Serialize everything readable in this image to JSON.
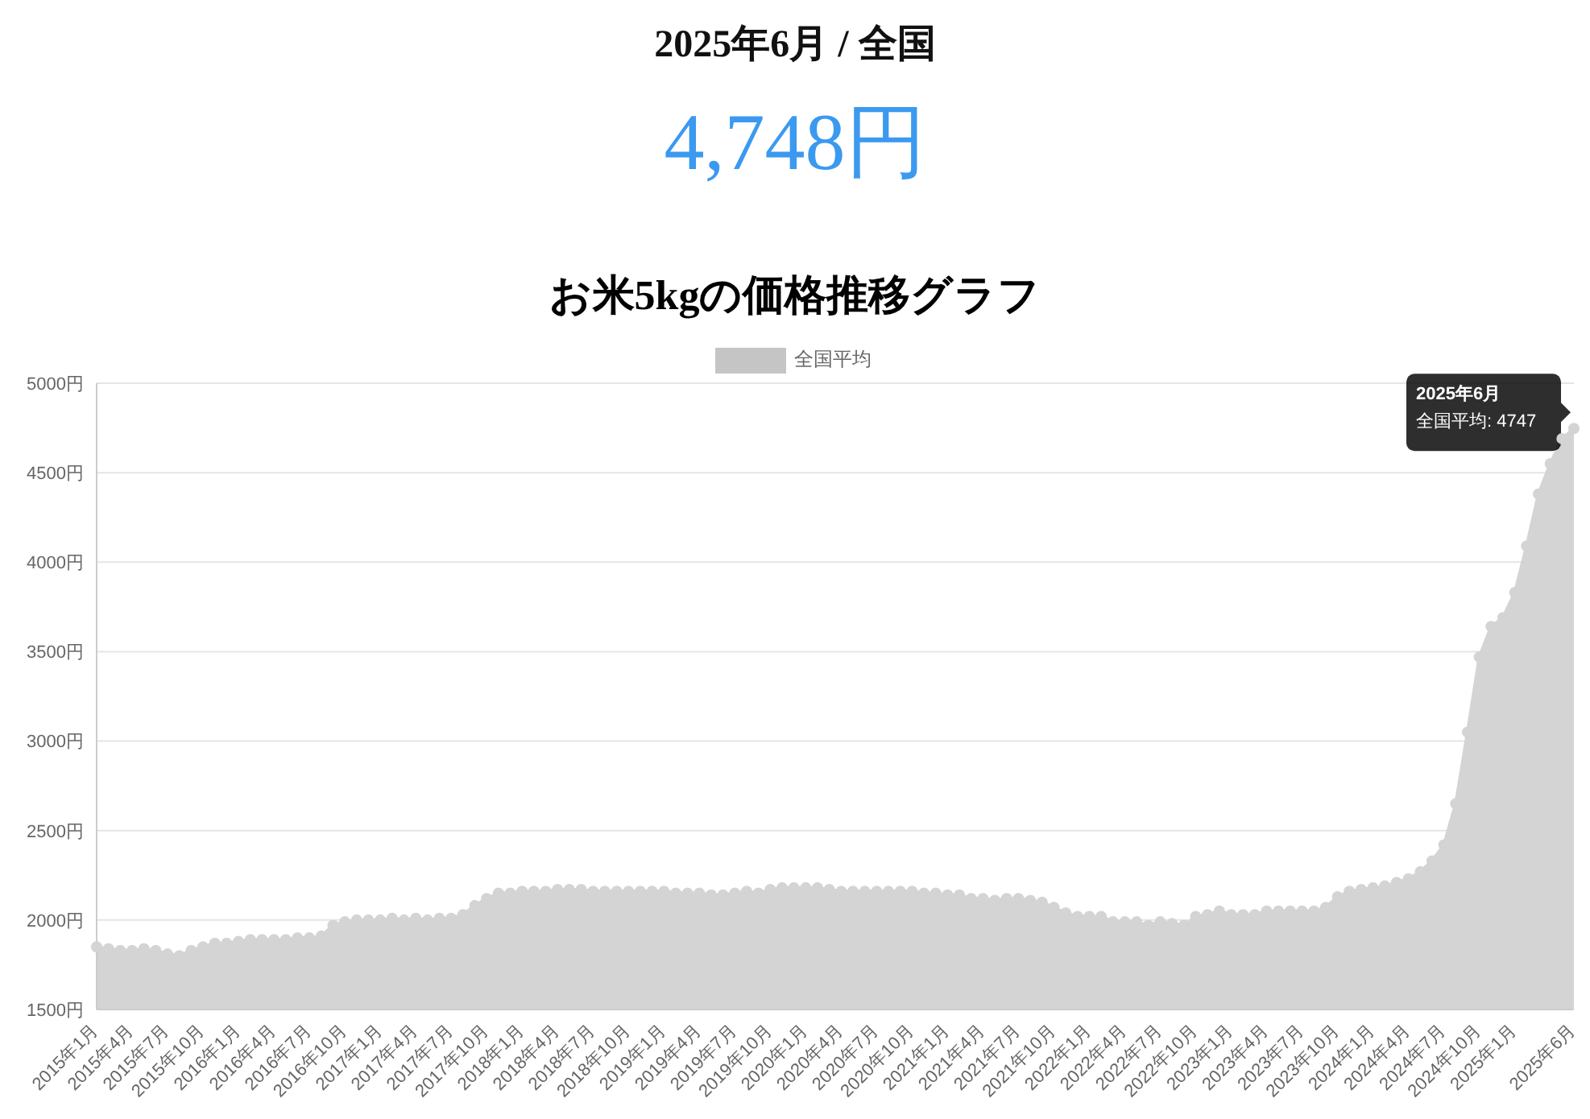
{
  "chart_data": {
    "type": "area",
    "title": "お米5kgの価格推移グラフ",
    "annotations": [
      "2025年6月 / 全国",
      "4,748円",
      "2025年6月",
      {
        "text": "全国平均: 4747",
        "x": "2025年6月",
        "y": 4747
      }
    ],
    "categories": [
      "2015年1月",
      null,
      null,
      "2015年4月",
      null,
      null,
      "2015年7月",
      null,
      null,
      "2015年10月",
      null,
      null,
      "2016年1月",
      null,
      null,
      "2016年4月",
      null,
      null,
      "2016年7月",
      null,
      null,
      "2016年10月",
      null,
      null,
      "2017年1月",
      null,
      null,
      "2017年4月",
      null,
      null,
      "2017年7月",
      null,
      null,
      "2017年10月",
      null,
      null,
      "2018年1月",
      null,
      null,
      "2018年4月",
      null,
      null,
      "2018年7月",
      null,
      null,
      "2018年10月",
      null,
      null,
      "2019年1月",
      null,
      null,
      "2019年4月",
      null,
      null,
      "2019年7月",
      null,
      null,
      "2019年10月",
      null,
      null,
      "2020年1月",
      null,
      null,
      "2020年4月",
      null,
      null,
      "2020年7月",
      null,
      null,
      "2020年10月",
      null,
      null,
      "2021年1月",
      null,
      null,
      "2021年4月",
      null,
      null,
      "2021年7月",
      null,
      null,
      "2021年10月",
      null,
      null,
      "2022年1月",
      null,
      null,
      "2022年4月",
      null,
      null,
      "2022年7月",
      null,
      null,
      "2022年10月",
      null,
      null,
      "2023年1月",
      null,
      null,
      "2023年4月",
      null,
      null,
      "2023年7月",
      null,
      null,
      "2023年10月",
      null,
      null,
      "2024年1月",
      null,
      null,
      "2024年4月",
      null,
      null,
      "2024年7月",
      null,
      null,
      "2024年10月",
      null,
      null,
      "2025年1月",
      null,
      null,
      null,
      null,
      "2025年6月"
    ],
    "series": [
      {
        "name": "全国平均",
        "color": "#d4d4d4",
        "values": [
          1850,
          1840,
          1830,
          1830,
          1840,
          1830,
          1810,
          1800,
          1830,
          1850,
          1870,
          1870,
          1880,
          1890,
          1890,
          1890,
          1890,
          1900,
          1900,
          1910,
          1970,
          1990,
          2000,
          2000,
          2000,
          2010,
          2000,
          2010,
          2000,
          2010,
          2010,
          2030,
          2080,
          2120,
          2150,
          2150,
          2160,
          2160,
          2160,
          2170,
          2170,
          2170,
          2160,
          2160,
          2160,
          2160,
          2160,
          2160,
          2160,
          2150,
          2150,
          2150,
          2140,
          2140,
          2150,
          2160,
          2150,
          2170,
          2180,
          2180,
          2180,
          2180,
          2170,
          2160,
          2160,
          2160,
          2160,
          2160,
          2160,
          2160,
          2150,
          2150,
          2140,
          2140,
          2120,
          2120,
          2110,
          2120,
          2120,
          2110,
          2100,
          2070,
          2040,
          2020,
          2020,
          2020,
          1990,
          1990,
          1990,
          1970,
          1990,
          1980,
          1970,
          2020,
          2030,
          2050,
          2030,
          2030,
          2030,
          2050,
          2050,
          2050,
          2050,
          2050,
          2070,
          2130,
          2160,
          2170,
          2180,
          2190,
          2210,
          2230,
          2270,
          2330,
          2420,
          2650,
          3050,
          3470,
          3640,
          3690,
          3830,
          4090,
          4380,
          4550,
          4690,
          4747
        ]
      }
    ],
    "ylim": [
      1500,
      5000
    ],
    "yticks": [
      {
        "value": 1500,
        "label": "1500円"
      },
      {
        "value": 2000,
        "label": "2000円"
      },
      {
        "value": 2500,
        "label": "2500円"
      },
      {
        "value": 3000,
        "label": "3000円"
      },
      {
        "value": 3500,
        "label": "3500円"
      },
      {
        "value": 4000,
        "label": "4000円"
      },
      {
        "value": 4500,
        "label": "4500円"
      },
      {
        "value": 5000,
        "label": "5000円"
      }
    ],
    "grid": "y",
    "legend": "top",
    "marker": "circle",
    "line_style": "solid"
  }
}
